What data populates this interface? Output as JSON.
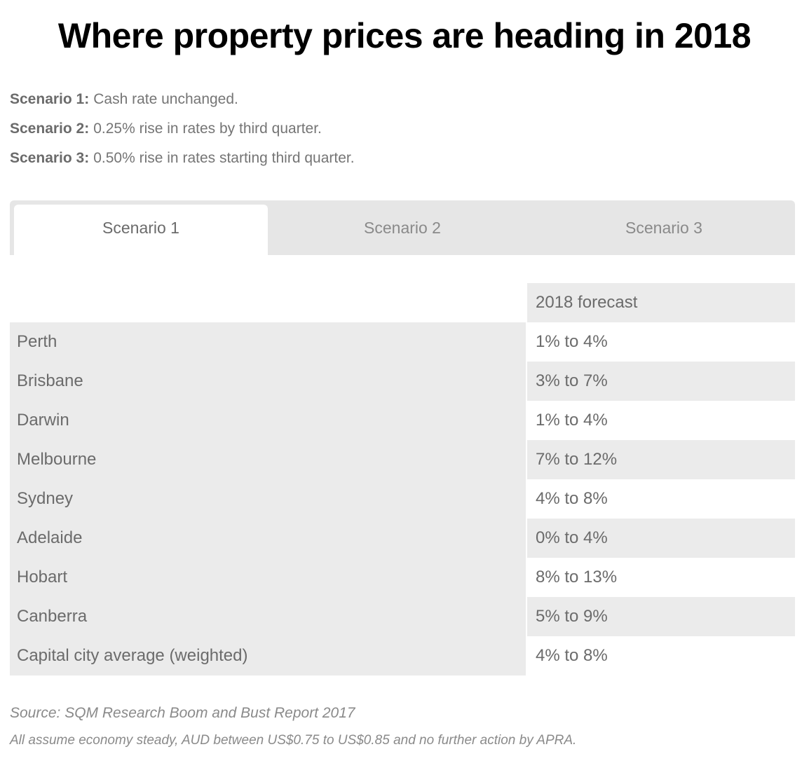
{
  "title": "Where property prices are heading in 2018",
  "scenarios": [
    {
      "label": "Scenario 1:",
      "text": "Cash rate unchanged."
    },
    {
      "label": "Scenario 2:",
      "text": "0.25% rise in rates by third quarter."
    },
    {
      "label": "Scenario 3:",
      "text": "0.50% rise in rates starting third quarter."
    }
  ],
  "tabs": [
    "Scenario 1",
    "Scenario 2",
    "Scenario 3"
  ],
  "active_tab": "Scenario 1",
  "table": {
    "column_header": "2018 forecast",
    "rows": [
      {
        "city": "Perth",
        "forecast": "1% to 4%"
      },
      {
        "city": "Brisbane",
        "forecast": "3% to 7%"
      },
      {
        "city": "Darwin",
        "forecast": "1% to 4%"
      },
      {
        "city": "Melbourne",
        "forecast": "7% to 12%"
      },
      {
        "city": "Sydney",
        "forecast": "4% to 8%"
      },
      {
        "city": "Adelaide",
        "forecast": "0% to 4%"
      },
      {
        "city": "Hobart",
        "forecast": "8% to 13%"
      },
      {
        "city": "Canberra",
        "forecast": "5% to 9%"
      },
      {
        "city": "Capital city average (weighted)",
        "forecast": "4% to 8%"
      }
    ]
  },
  "source": "Source: SQM Research Boom and Bust Report 2017",
  "note": "All assume economy steady, AUD between US$0.75 to US$0.85 and no further action by APRA."
}
